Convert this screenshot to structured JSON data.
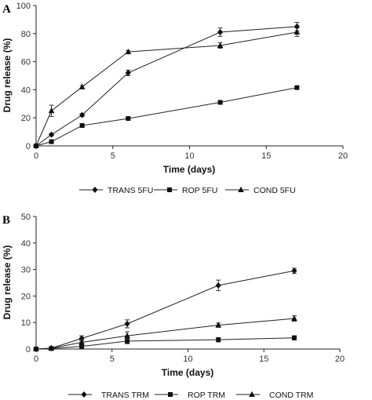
{
  "chart_data": [
    {
      "type": "line",
      "panel_label": "A",
      "xlabel": "Time (days)",
      "ylabel": "Drug release (%)",
      "xlim": [
        0,
        20
      ],
      "ylim": [
        0,
        100
      ],
      "xticks": [
        0,
        5,
        10,
        15,
        20
      ],
      "yticks": [
        0,
        20,
        40,
        60,
        80,
        100
      ],
      "grid": false,
      "legend_position": "bottom-center",
      "series": [
        {
          "name": "TRANS 5FU",
          "marker": "diamond",
          "x": [
            0,
            1,
            3,
            6,
            12,
            17
          ],
          "y": [
            0,
            8,
            22,
            52,
            81,
            85
          ],
          "err": [
            0,
            0.8,
            1,
            2,
            3,
            3
          ]
        },
        {
          "name": "ROP 5FU",
          "marker": "square",
          "x": [
            0,
            1,
            3,
            6,
            12,
            17
          ],
          "y": [
            0,
            3,
            14.5,
            19.5,
            31,
            41.5
          ],
          "err": [
            0,
            0.5,
            0.8,
            0.8,
            0.8,
            1
          ]
        },
        {
          "name": "COND 5FU",
          "marker": "triangle",
          "x": [
            0,
            1,
            3,
            6,
            12,
            17
          ],
          "y": [
            0,
            25,
            42,
            67,
            71.5,
            81
          ],
          "err": [
            0,
            4,
            1,
            1,
            2,
            3
          ]
        }
      ]
    },
    {
      "type": "line",
      "panel_label": "B",
      "xlabel": "Time (days)",
      "ylabel": "Drug release (%)",
      "xlim": [
        0,
        20
      ],
      "ylim": [
        0,
        50
      ],
      "xticks": [
        0,
        5,
        10,
        15,
        20
      ],
      "yticks": [
        0,
        10,
        20,
        30,
        40,
        50
      ],
      "grid": false,
      "legend_position": "bottom-center",
      "series": [
        {
          "name": "TRANS TRM",
          "marker": "diamond",
          "x": [
            0,
            1,
            3,
            6,
            12,
            17
          ],
          "y": [
            0,
            0.3,
            4,
            9.5,
            24,
            29.5
          ],
          "err": [
            0,
            0.5,
            1,
            1.5,
            2,
            1
          ]
        },
        {
          "name": "ROP TRM",
          "marker": "square",
          "x": [
            0,
            1,
            3,
            6,
            12,
            17
          ],
          "y": [
            0,
            0.2,
            1,
            3,
            3.5,
            4.2
          ],
          "err": [
            0,
            0.3,
            0.8,
            1,
            0.8,
            0.8
          ]
        },
        {
          "name": "COND TRM",
          "marker": "triangle",
          "x": [
            0,
            1,
            3,
            6,
            12,
            17
          ],
          "y": [
            0,
            0.3,
            2.5,
            5,
            9,
            11.5
          ],
          "err": [
            0,
            0.3,
            1,
            1.5,
            0.8,
            1
          ]
        }
      ]
    }
  ]
}
